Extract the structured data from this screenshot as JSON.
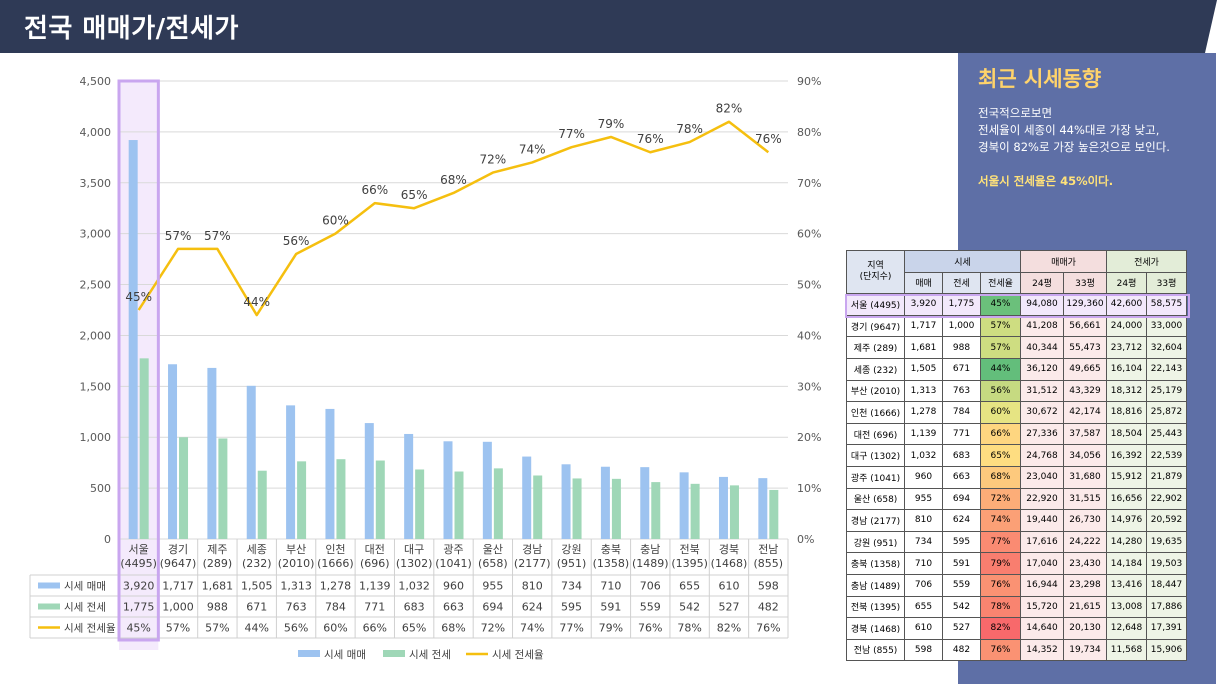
{
  "header": {
    "title": "전국 매매가/전세가"
  },
  "side": {
    "title": "최근 시세동향",
    "lines": [
      "전국적으로보면",
      "전세율이 세종이 44%대로 가장 낮고,",
      "경북이 82%로 가장 높은것으로 보인다."
    ],
    "highlight": "서울시 전세율은 45%이다."
  },
  "colors": {
    "maemae": "#9dc3f0",
    "jeonse": "#9fd7b7",
    "ratio": "#f5bf0f",
    "highlight": "#c9a6ef",
    "title_bg": "#2f3a56",
    "panel_bg": "#5e6fa6"
  },
  "chart_data": {
    "type": "bar+line",
    "categories": [
      "서울\n(4495)",
      "경기\n(9647)",
      "제주\n(289)",
      "세종\n(232)",
      "부산\n(2010)",
      "인천\n(1666)",
      "대전\n(696)",
      "대구\n(1302)",
      "광주\n(1041)",
      "울산\n(658)",
      "경남\n(2177)",
      "강원\n(951)",
      "충북\n(1358)",
      "충남\n(1489)",
      "전북\n(1395)",
      "경북\n(1468)",
      "전남\n(855)"
    ],
    "series": [
      {
        "name": "시세 매매",
        "type": "bar",
        "axis": "left",
        "values": [
          3920,
          1717,
          1681,
          1505,
          1313,
          1278,
          1139,
          1032,
          960,
          955,
          810,
          734,
          710,
          706,
          655,
          610,
          598
        ]
      },
      {
        "name": "시세 전세",
        "type": "bar",
        "axis": "left",
        "values": [
          1775,
          1000,
          988,
          671,
          763,
          784,
          771,
          683,
          663,
          694,
          624,
          595,
          591,
          559,
          542,
          527,
          482
        ]
      },
      {
        "name": "시세 전세율",
        "type": "line",
        "axis": "right",
        "values": [
          45,
          57,
          57,
          44,
          56,
          60,
          66,
          65,
          68,
          72,
          74,
          77,
          79,
          76,
          78,
          82,
          76
        ]
      }
    ],
    "table_rows": [
      [
        "3,920",
        "1,717",
        "1,681",
        "1,505",
        "1,313",
        "1,278",
        "1,139",
        "1,032",
        "960",
        "955",
        "810",
        "734",
        "710",
        "706",
        "655",
        "610",
        "598"
      ],
      [
        "1,775",
        "1,000",
        "988",
        "671",
        "763",
        "784",
        "771",
        "683",
        "663",
        "694",
        "624",
        "595",
        "591",
        "559",
        "542",
        "527",
        "482"
      ],
      [
        "45%",
        "57%",
        "57%",
        "44%",
        "56%",
        "60%",
        "66%",
        "65%",
        "68%",
        "72%",
        "74%",
        "77%",
        "79%",
        "76%",
        "78%",
        "82%",
        "76%"
      ]
    ],
    "ylim_left": [
      0,
      4500
    ],
    "ylim_right": [
      0,
      90
    ],
    "left_ticks": [
      "0",
      "500",
      "1,000",
      "1,500",
      "2,000",
      "2,500",
      "3,000",
      "3,500",
      "4,000",
      "4,500"
    ],
    "right_ticks": [
      "0%",
      "10%",
      "20%",
      "30%",
      "40%",
      "50%",
      "60%",
      "70%",
      "80%",
      "90%"
    ],
    "highlighted_category": "서울\n(4495)",
    "legend_position": "bottom",
    "grid": true
  },
  "table": {
    "header_region": "지역\n(단지수)",
    "header_sise": "시세",
    "header_maemae": "매매가",
    "header_jeonse": "전세가",
    "sub_headers": [
      "매매",
      "전세",
      "전세율",
      "24평",
      "33평",
      "24평",
      "33평"
    ],
    "rows": [
      [
        "서울 (4495)",
        "3,920",
        "1,775",
        "45%",
        "94,080",
        "129,360",
        "42,600",
        "58,575"
      ],
      [
        "경기 (9647)",
        "1,717",
        "1,000",
        "57%",
        "41,208",
        "56,661",
        "24,000",
        "33,000"
      ],
      [
        "제주 (289)",
        "1,681",
        "988",
        "57%",
        "40,344",
        "55,473",
        "23,712",
        "32,604"
      ],
      [
        "세종 (232)",
        "1,505",
        "671",
        "44%",
        "36,120",
        "49,665",
        "16,104",
        "22,143"
      ],
      [
        "부산 (2010)",
        "1,313",
        "763",
        "56%",
        "31,512",
        "43,329",
        "18,312",
        "25,179"
      ],
      [
        "인천 (1666)",
        "1,278",
        "784",
        "60%",
        "30,672",
        "42,174",
        "18,816",
        "25,872"
      ],
      [
        "대전 (696)",
        "1,139",
        "771",
        "66%",
        "27,336",
        "37,587",
        "18,504",
        "25,443"
      ],
      [
        "대구 (1302)",
        "1,032",
        "683",
        "65%",
        "24,768",
        "34,056",
        "16,392",
        "22,539"
      ],
      [
        "광주 (1041)",
        "960",
        "663",
        "68%",
        "23,040",
        "31,680",
        "15,912",
        "21,879"
      ],
      [
        "울산 (658)",
        "955",
        "694",
        "72%",
        "22,920",
        "31,515",
        "16,656",
        "22,902"
      ],
      [
        "경남 (2177)",
        "810",
        "624",
        "74%",
        "19,440",
        "26,730",
        "14,976",
        "20,592"
      ],
      [
        "강원 (951)",
        "734",
        "595",
        "77%",
        "17,616",
        "24,222",
        "14,280",
        "19,635"
      ],
      [
        "충북 (1358)",
        "710",
        "591",
        "79%",
        "17,040",
        "23,430",
        "14,184",
        "19,503"
      ],
      [
        "충남 (1489)",
        "706",
        "559",
        "76%",
        "16,944",
        "23,298",
        "13,416",
        "18,447"
      ],
      [
        "전북 (1395)",
        "655",
        "542",
        "78%",
        "15,720",
        "21,615",
        "13,008",
        "17,886"
      ],
      [
        "경북 (1468)",
        "610",
        "527",
        "82%",
        "14,640",
        "20,130",
        "12,648",
        "17,391"
      ],
      [
        "전남 (855)",
        "598",
        "482",
        "76%",
        "14,352",
        "19,734",
        "11,568",
        "15,906"
      ]
    ]
  }
}
